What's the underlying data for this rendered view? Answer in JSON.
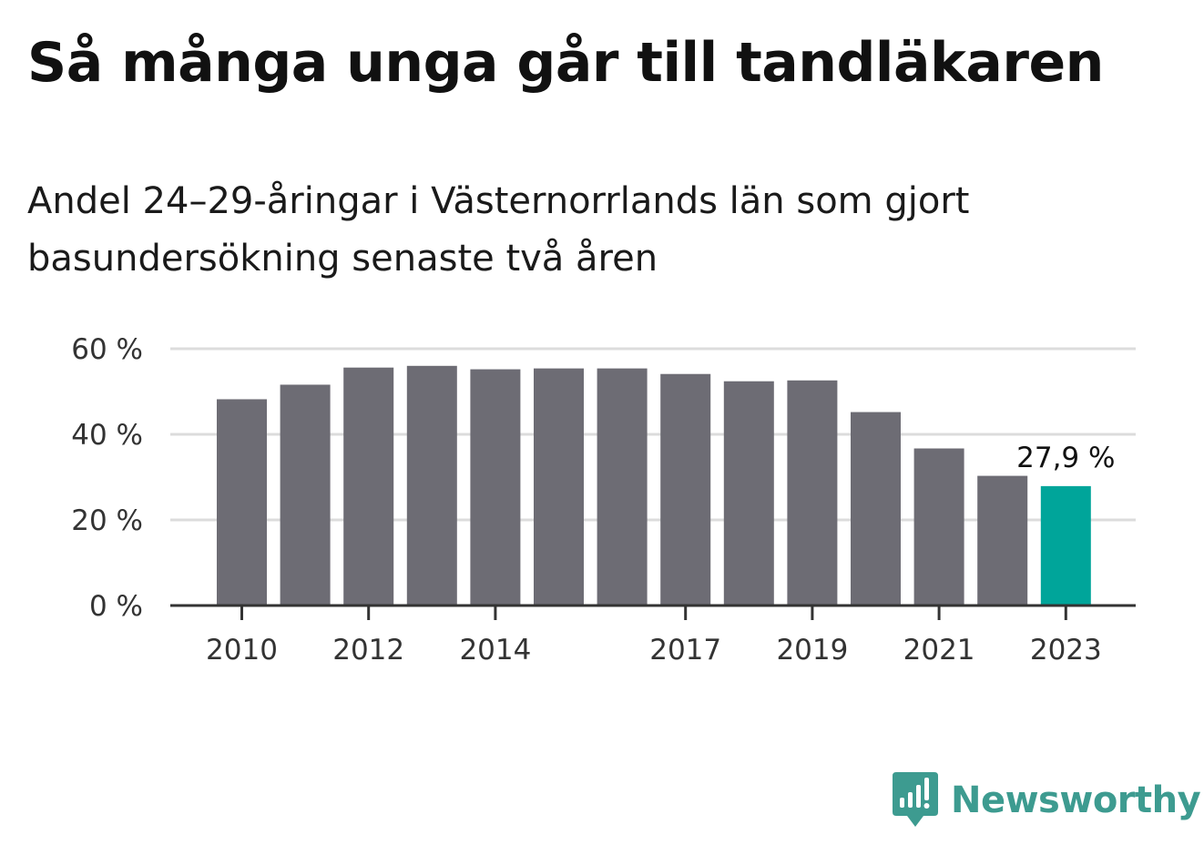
{
  "title": "Så många unga går till tandläkaren",
  "subtitle": "Andel 24–29-åringar i Västernorrlands län som gjort basundersökning senaste två åren",
  "brand": {
    "name": "Newsworthy",
    "color": "#3d9b90",
    "icon": "newsworthy-logo-icon"
  },
  "chart_data": {
    "type": "bar",
    "categories": [
      "2010",
      "2011",
      "2012",
      "2013",
      "2014",
      "2015",
      "2016",
      "2017",
      "2018",
      "2019",
      "2020",
      "2021",
      "2022",
      "2023"
    ],
    "values": [
      48.2,
      51.6,
      55.6,
      56.0,
      55.2,
      55.4,
      55.4,
      54.1,
      52.4,
      52.6,
      45.2,
      36.7,
      30.3,
      27.9
    ],
    "x_tick_labels": [
      "2010",
      "",
      "2012",
      "",
      "2014",
      "",
      "",
      "2017",
      "",
      "2019",
      "",
      "2021",
      "",
      "2023"
    ],
    "ylim": [
      0,
      60
    ],
    "y_ticks": [
      0,
      20,
      40,
      60
    ],
    "y_tick_labels": [
      "0 %",
      "20 %",
      "40 %",
      "60 %"
    ],
    "grid": true,
    "colors": {
      "bar": "#6d6c74",
      "highlight": "#00a59a",
      "grid": "#dcdcdc",
      "axis": "#333333"
    },
    "highlight_index": 13,
    "annotations": [
      {
        "category": "2023",
        "text": "27,9 %"
      }
    ]
  }
}
